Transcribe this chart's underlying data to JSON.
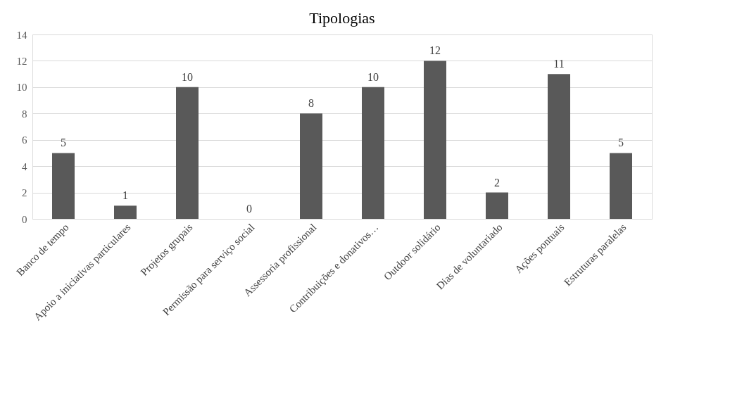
{
  "chart_data": {
    "type": "bar",
    "title": "Tipologias",
    "categories": [
      "Banco de tempo",
      "Apoio a iniciativas particulares",
      "Projetos grupais",
      "Permissão para serviço social",
      "Assessoria profissional",
      "Contribuições e donativos…",
      "Outdoor solidário",
      "Dias de voluntariado",
      "Ações pontuais",
      "Estruturas paralelas"
    ],
    "values": [
      5,
      1,
      10,
      0,
      8,
      10,
      12,
      2,
      11,
      5
    ],
    "color": "#595959",
    "ylim": [
      0,
      14
    ],
    "yticks": [
      0,
      2,
      4,
      6,
      8,
      10,
      12,
      14
    ],
    "grid": "y",
    "data_labels": true
  }
}
